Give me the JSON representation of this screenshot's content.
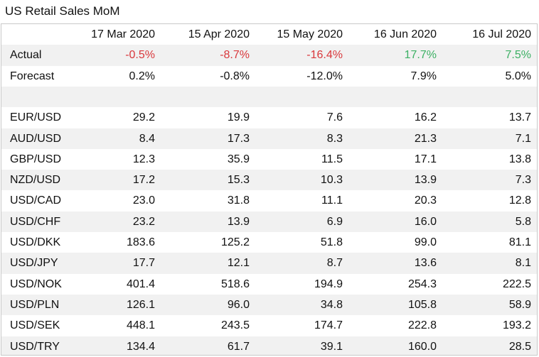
{
  "title": "US Retail Sales MoM",
  "columns": [
    "17 Mar 2020",
    "15 Apr 2020",
    "15 May 2020",
    "16 Jun 2020",
    "16 Jul 2020"
  ],
  "actual": {
    "label": "Actual",
    "values": [
      "-0.5%",
      "-8.7%",
      "-16.4%",
      "17.7%",
      "7.5%"
    ],
    "colors": [
      "#d9383c",
      "#d9383c",
      "#d9383c",
      "#3cb064",
      "#3cb064"
    ]
  },
  "forecast": {
    "label": "Forecast",
    "values": [
      "0.2%",
      "-0.8%",
      "-12.0%",
      "7.9%",
      "5.0%"
    ]
  },
  "pairs": [
    {
      "label": "EUR/USD",
      "values": [
        "29.2",
        "19.9",
        "7.6",
        "16.2",
        "13.7"
      ]
    },
    {
      "label": "AUD/USD",
      "values": [
        "8.4",
        "17.3",
        "8.3",
        "21.3",
        "7.1"
      ]
    },
    {
      "label": "GBP/USD",
      "values": [
        "12.3",
        "35.9",
        "11.5",
        "17.1",
        "13.8"
      ]
    },
    {
      "label": "NZD/USD",
      "values": [
        "17.2",
        "15.3",
        "10.3",
        "13.9",
        "7.3"
      ]
    },
    {
      "label": "USD/CAD",
      "values": [
        "23.0",
        "31.8",
        "11.1",
        "20.3",
        "12.8"
      ]
    },
    {
      "label": "USD/CHF",
      "values": [
        "23.2",
        "13.9",
        "6.9",
        "16.0",
        "5.8"
      ]
    },
    {
      "label": "USD/DKK",
      "values": [
        "183.6",
        "125.2",
        "51.8",
        "99.0",
        "81.1"
      ]
    },
    {
      "label": "USD/JPY",
      "values": [
        "17.7",
        "12.1",
        "8.7",
        "13.6",
        "8.1"
      ]
    },
    {
      "label": "USD/NOK",
      "values": [
        "401.4",
        "518.6",
        "194.9",
        "254.3",
        "222.5"
      ]
    },
    {
      "label": "USD/PLN",
      "values": [
        "126.1",
        "96.0",
        "34.8",
        "105.8",
        "58.9"
      ]
    },
    {
      "label": "USD/SEK",
      "values": [
        "448.1",
        "243.5",
        "174.7",
        "222.8",
        "193.2"
      ]
    },
    {
      "label": "USD/TRY",
      "values": [
        "134.4",
        "61.7",
        "39.1",
        "160.0",
        "28.5"
      ]
    }
  ]
}
